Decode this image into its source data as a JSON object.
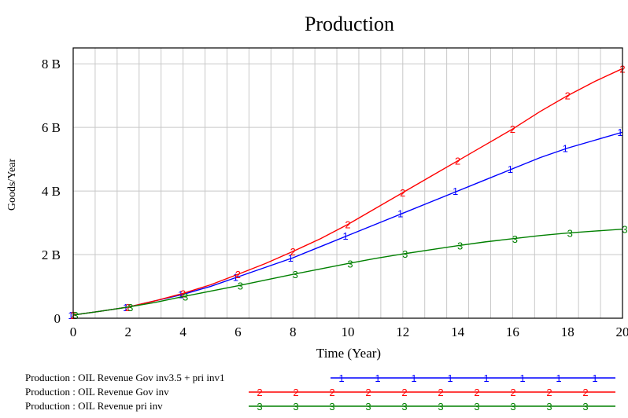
{
  "chart_data": {
    "type": "line",
    "title": "Production",
    "xlabel": "Time (Year)",
    "ylabel": "Goods/Year",
    "xlim": [
      0,
      20
    ],
    "ylim": [
      0,
      8.5
    ],
    "x_ticks": [
      "0",
      "2",
      "4",
      "6",
      "8",
      "10",
      "12",
      "14",
      "16",
      "18",
      "20"
    ],
    "y_ticks": [
      {
        "value": 0,
        "label": "0"
      },
      {
        "value": 2,
        "label": "2 B"
      },
      {
        "value": 4,
        "label": "4 B"
      },
      {
        "value": 6,
        "label": "6 B"
      },
      {
        "value": 8,
        "label": "8 B"
      }
    ],
    "grid": true,
    "x_grid_step": 0.8,
    "legend_position": "bottom",
    "series": [
      {
        "name": "Production : OIL Revenue Gov inv3.5 + pri inv1",
        "marker": "1",
        "color": "#0000ff",
        "x": [
          0,
          1,
          2,
          3,
          4,
          5,
          6,
          7,
          8,
          9,
          10,
          11,
          12,
          13,
          14,
          15,
          16,
          17,
          18,
          19,
          20
        ],
        "values": [
          0.1,
          0.22,
          0.35,
          0.55,
          0.75,
          1.0,
          1.3,
          1.6,
          1.9,
          2.25,
          2.6,
          2.95,
          3.3,
          3.65,
          4.0,
          4.35,
          4.7,
          5.05,
          5.35,
          5.6,
          5.85
        ]
      },
      {
        "name": "Production : OIL Revenue Gov inv",
        "marker": "2",
        "color": "#ff0000",
        "x": [
          0,
          1,
          2,
          3,
          4,
          5,
          6,
          7,
          8,
          9,
          10,
          11,
          12,
          13,
          14,
          15,
          16,
          17,
          18,
          19,
          20
        ],
        "values": [
          0.1,
          0.22,
          0.35,
          0.55,
          0.78,
          1.05,
          1.38,
          1.72,
          2.1,
          2.5,
          2.95,
          3.45,
          3.95,
          4.45,
          4.95,
          5.45,
          5.95,
          6.5,
          7.0,
          7.45,
          7.85
        ]
      },
      {
        "name": "Production : OIL Revenue pri inv",
        "marker": "3",
        "color": "#008000",
        "x": [
          0,
          1,
          2,
          3,
          4,
          5,
          6,
          7,
          8,
          9,
          10,
          11,
          12,
          13,
          14,
          15,
          16,
          17,
          18,
          19,
          20
        ],
        "values": [
          0.1,
          0.22,
          0.35,
          0.5,
          0.68,
          0.85,
          1.02,
          1.2,
          1.38,
          1.55,
          1.72,
          1.88,
          2.02,
          2.15,
          2.28,
          2.4,
          2.5,
          2.6,
          2.68,
          2.74,
          2.8
        ]
      }
    ]
  }
}
